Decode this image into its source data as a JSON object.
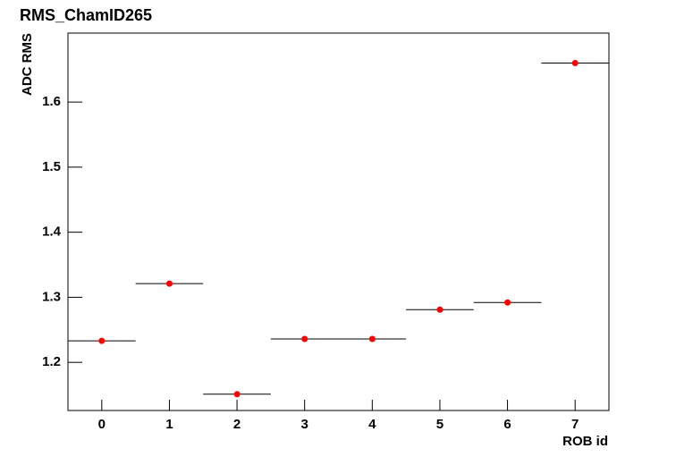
{
  "chart_data": {
    "type": "scatter",
    "title": "RMS_ChamID265",
    "xlabel": "ROB id",
    "ylabel": "ADC RMS",
    "x": [
      0,
      1,
      2,
      3,
      4,
      5,
      6,
      7
    ],
    "xerr": 0.5,
    "series": [
      {
        "color": "#ff0000",
        "values": [
          1.233,
          1.321,
          1.151,
          1.236,
          1.236,
          1.281,
          1.292,
          1.66
        ]
      }
    ],
    "xlim": [
      -0.5,
      7.5
    ],
    "xticks": [
      0,
      1,
      2,
      3,
      4,
      5,
      6,
      7
    ],
    "ylim": [
      1.126,
      1.706
    ],
    "yticks": [
      1.2,
      1.3,
      1.4,
      1.5,
      1.6
    ]
  }
}
